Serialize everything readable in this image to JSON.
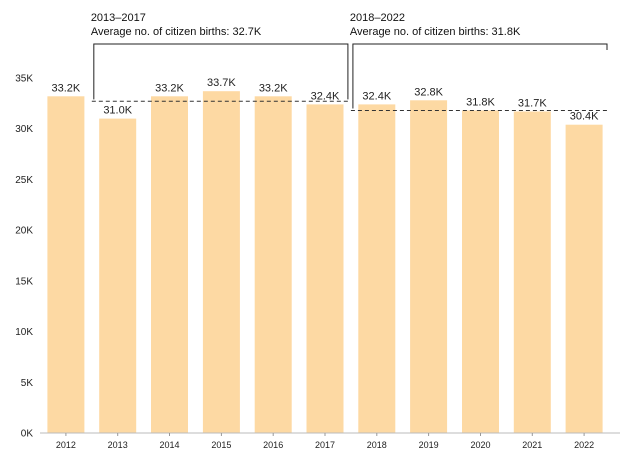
{
  "chart_data": {
    "type": "bar",
    "categories": [
      "2012",
      "2013",
      "2014",
      "2015",
      "2016",
      "2017",
      "2018",
      "2019",
      "2020",
      "2021",
      "2022"
    ],
    "values": [
      33.2,
      31.0,
      33.2,
      33.7,
      33.2,
      32.4,
      32.4,
      32.8,
      31.8,
      31.7,
      30.4
    ],
    "value_labels": [
      "33.2K",
      "31.0K",
      "33.2K",
      "33.7K",
      "33.2K",
      "32.4K",
      "32.4K",
      "32.8K",
      "31.8K",
      "31.7K",
      "30.4K"
    ],
    "value_unit": "thousands",
    "ylim": [
      0,
      35
    ],
    "yticks": [
      0,
      5,
      10,
      15,
      20,
      25,
      30,
      35
    ],
    "ytick_labels": [
      "0K",
      "5K",
      "10K",
      "15K",
      "20K",
      "25K",
      "30K",
      "35K"
    ],
    "title": "",
    "xlabel": "",
    "ylabel": "",
    "grid": false,
    "bar_color": "#fdd9a3",
    "annotations": [
      {
        "period": "2013–2017",
        "text": "Average no. of citizen births: 32.7K",
        "average": 32.7,
        "first_category": "2013",
        "last_category": "2017"
      },
      {
        "period": "2018–2022",
        "text": "Average no. of citizen births: 31.8K",
        "average": 31.8,
        "first_category": "2018",
        "last_category": "2022"
      }
    ]
  }
}
